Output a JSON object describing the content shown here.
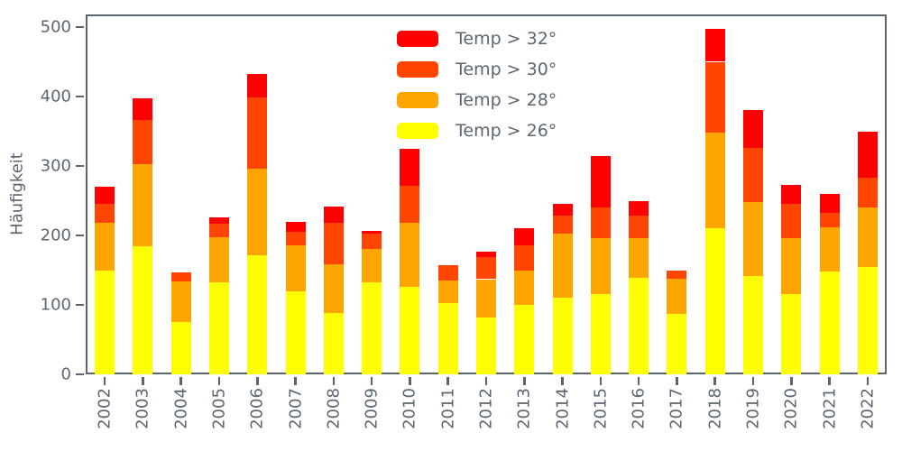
{
  "chart_data": {
    "type": "bar",
    "stacked": true,
    "title": "",
    "xlabel": "",
    "ylabel": "Häufigkeit",
    "ylim": [
      0,
      500
    ],
    "yticks": [
      0,
      100,
      200,
      300,
      400,
      500
    ],
    "grid": false,
    "legend_position": "upper-center-left inside plot",
    "categories": [
      "2002",
      "2003",
      "2004",
      "2005",
      "2006",
      "2007",
      "2008",
      "2009",
      "2010",
      "2011",
      "2012",
      "2013",
      "2014",
      "2015",
      "2016",
      "2017",
      "2018",
      "2019",
      "2020",
      "2021",
      "2022"
    ],
    "series": [
      {
        "name": "Temp > 32°",
        "color": "#ff0000",
        "values": [
          24,
          31,
          0,
          9,
          33,
          15,
          24,
          4,
          53,
          0,
          7,
          24,
          18,
          74,
          22,
          0,
          47,
          55,
          28,
          27,
          66
        ]
      },
      {
        "name": "Temp > 30°",
        "color": "#ff4500",
        "values": [
          28,
          63,
          13,
          20,
          103,
          19,
          59,
          23,
          54,
          22,
          32,
          37,
          25,
          44,
          32,
          12,
          102,
          78,
          49,
          21,
          43
        ]
      },
      {
        "name": "Temp > 28°",
        "color": "#ffa500",
        "values": [
          69,
          119,
          59,
          64,
          125,
          67,
          71,
          47,
          92,
          32,
          55,
          49,
          93,
          80,
          57,
          51,
          137,
          107,
          81,
          64,
          85
        ]
      },
      {
        "name": "Temp > 26°",
        "color": "#ffff00",
        "values": [
          149,
          184,
          75,
          133,
          171,
          119,
          88,
          133,
          126,
          103,
          82,
          100,
          110,
          116,
          139,
          87,
          211,
          141,
          115,
          148,
          155
        ]
      }
    ],
    "totals": [
      270,
      397,
      147,
      226,
      432,
      220,
      242,
      207,
      325,
      157,
      176,
      210,
      246,
      314,
      250,
      150,
      497,
      381,
      273,
      260,
      349
    ]
  },
  "style": {
    "axis_color": "#5c6670",
    "background_color": "#ffffff"
  }
}
